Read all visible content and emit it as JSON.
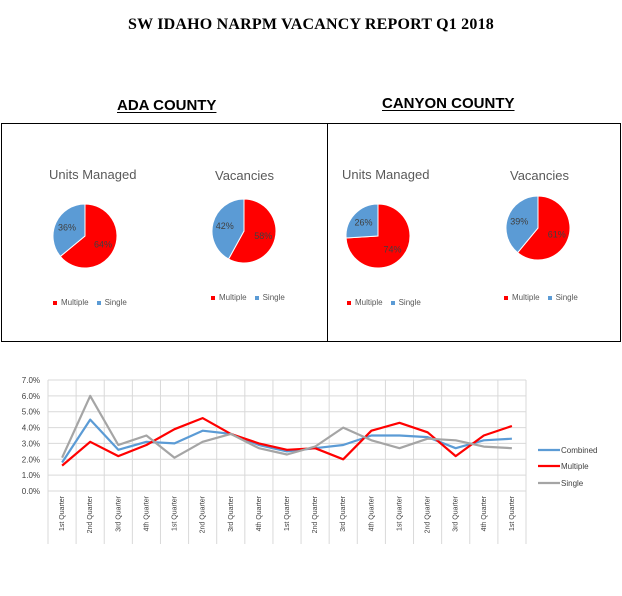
{
  "report_title": "SW IDAHO NARPM VACANCY REPORT Q1 2018",
  "colors": {
    "multiple": "#ff0000",
    "single": "#5b9bd5",
    "combined": "#5b9bd5",
    "single_line": "#a5a5a5"
  },
  "counties": [
    {
      "title": "ADA COUNTY",
      "pies": [
        {
          "title": "Units Managed",
          "labels": [
            "64%",
            "36%"
          ]
        },
        {
          "title": "Vacancies",
          "labels": [
            "58%",
            "42%"
          ]
        }
      ],
      "legend": [
        "Multiple",
        "Single"
      ]
    },
    {
      "title": "CANYON COUNTY",
      "pies": [
        {
          "title": "Units Managed",
          "labels": [
            "74%",
            "26%"
          ]
        },
        {
          "title": "Vacancies",
          "labels": [
            "61%",
            "39%"
          ]
        }
      ],
      "legend": [
        "Multiple",
        "Single"
      ]
    }
  ],
  "chart_data": [
    {
      "type": "pie",
      "title": "Units Managed",
      "group": "ADA COUNTY",
      "categories": [
        "Multiple",
        "Single"
      ],
      "values": [
        64,
        36
      ]
    },
    {
      "type": "pie",
      "title": "Vacancies",
      "group": "ADA COUNTY",
      "categories": [
        "Multiple",
        "Single"
      ],
      "values": [
        58,
        42
      ]
    },
    {
      "type": "pie",
      "title": "Units Managed",
      "group": "CANYON COUNTY",
      "categories": [
        "Multiple",
        "Single"
      ],
      "values": [
        74,
        26
      ]
    },
    {
      "type": "pie",
      "title": "Vacancies",
      "group": "CANYON COUNTY",
      "categories": [
        "Multiple",
        "Single"
      ],
      "values": [
        61,
        39
      ]
    },
    {
      "type": "line",
      "categories": [
        "1st Quarter",
        "2nd Quarter",
        "3rd Quarter",
        "4th Quarter",
        "1st Quarter",
        "2nd Quarter",
        "3rd Quarter",
        "4th Quarter",
        "1st Quarter",
        "2nd Quarter",
        "3rd Quarter",
        "4th Quarter",
        "1st Quarter",
        "2nd Quarter",
        "3rd Quarter",
        "4th Quarter",
        "1st Quarter"
      ],
      "y_ticks": [
        "0.0%",
        "1.0%",
        "2.0%",
        "3.0%",
        "4.0%",
        "5.0%",
        "6.0%",
        "7.0%"
      ],
      "ylim": [
        0,
        7
      ],
      "grid": true,
      "legend_position": "right",
      "series": [
        {
          "name": "Combined",
          "color": "#5b9bd5",
          "values": [
            1.8,
            4.5,
            2.6,
            3.1,
            3.0,
            3.8,
            3.6,
            2.9,
            2.5,
            2.7,
            2.9,
            3.5,
            3.5,
            3.4,
            2.7,
            3.2,
            3.3
          ]
        },
        {
          "name": "Multiple",
          "color": "#ff0000",
          "values": [
            1.6,
            3.1,
            2.2,
            2.9,
            3.9,
            4.6,
            3.6,
            3.0,
            2.6,
            2.7,
            2.0,
            3.8,
            4.3,
            3.7,
            2.2,
            3.5,
            4.1
          ]
        },
        {
          "name": "Single",
          "color": "#a5a5a5",
          "values": [
            2.1,
            6.0,
            2.9,
            3.5,
            2.1,
            3.1,
            3.6,
            2.7,
            2.3,
            2.8,
            4.0,
            3.2,
            2.7,
            3.3,
            3.2,
            2.8,
            2.7
          ]
        }
      ]
    }
  ]
}
